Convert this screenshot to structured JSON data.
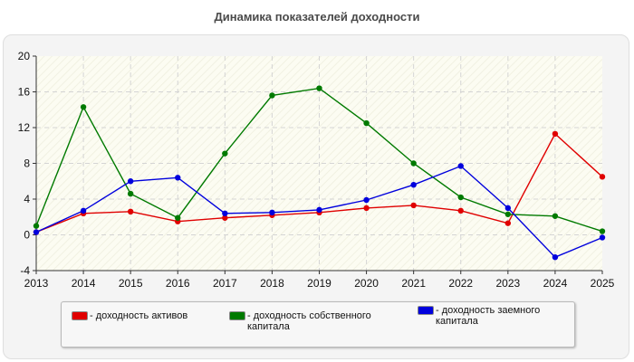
{
  "chart_data": {
    "type": "line",
    "title": "Динамика показателей доходности",
    "x": [
      "2013",
      "2014",
      "2015",
      "2016",
      "2017",
      "2018",
      "2019",
      "2020",
      "2021",
      "2022",
      "2023",
      "2024",
      "2025"
    ],
    "ylim": [
      -4,
      20
    ],
    "yticks": [
      "20",
      "16",
      "12",
      "8",
      "4",
      "0",
      "-4"
    ],
    "ytick_values": [
      20,
      16,
      12,
      8,
      4,
      0,
      -4
    ],
    "grid": true,
    "legend_position": "bottom",
    "series": [
      {
        "name_lines": [
          "- доходность активов"
        ],
        "color": "#e00000",
        "values": [
          0.3,
          2.4,
          2.6,
          1.5,
          1.9,
          2.2,
          2.5,
          3.0,
          3.3,
          2.7,
          1.3,
          11.3,
          6.5
        ]
      },
      {
        "name_lines": [
          "- доходность собственного",
          "капитала"
        ],
        "color": "#007a00",
        "values": [
          1.0,
          14.3,
          4.6,
          1.9,
          9.1,
          15.6,
          16.4,
          12.5,
          8.0,
          4.2,
          2.3,
          2.1,
          0.4
        ]
      },
      {
        "name_lines": [
          "- доходность заемного",
          "капитала"
        ],
        "color": "#0000dd",
        "values": [
          0.3,
          2.7,
          6.0,
          6.4,
          2.4,
          2.5,
          2.8,
          3.9,
          5.6,
          7.7,
          3.0,
          -2.5,
          -0.3
        ]
      }
    ]
  }
}
